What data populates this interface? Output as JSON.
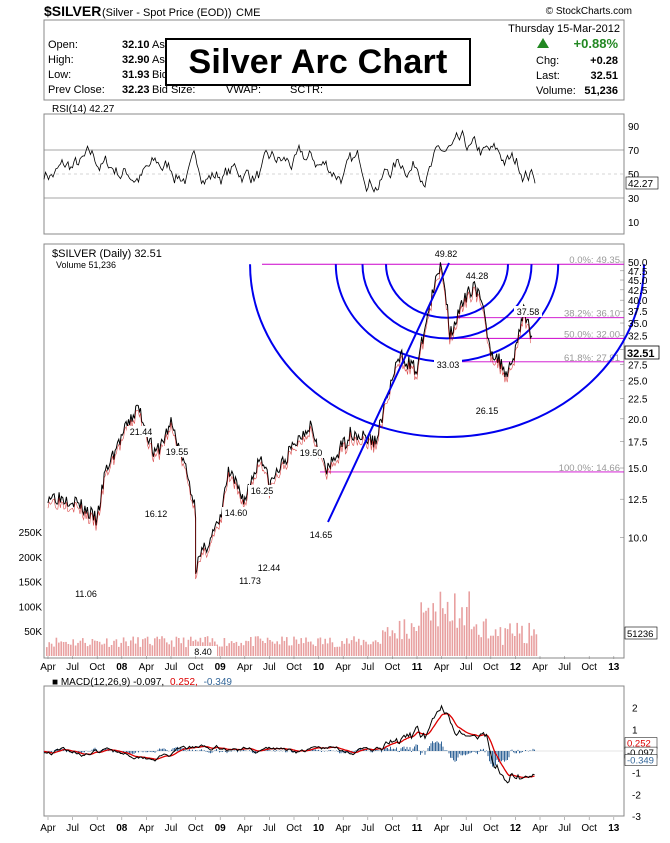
{
  "header": {
    "symbol": "$SILVER",
    "description": "(Silver - Spot Price (EOD))",
    "exchange": "CME",
    "watermark": "© StockCharts.com",
    "date": "Thursday  15-Mar-2012",
    "change_pct": "+0.88%",
    "stats_left": [
      {
        "label": "Open:",
        "value": "32.10"
      },
      {
        "label": "High:",
        "value": "32.90"
      },
      {
        "label": "Low:",
        "value": "31.93"
      },
      {
        "label": "Prev Close:",
        "value": "32.23"
      }
    ],
    "stats_mid": [
      "As",
      "As",
      "Bid",
      "Bid Size:",
      "VWAP:",
      "SCTR:"
    ],
    "stats_right": [
      {
        "label": "Chg:",
        "value": "+0.28"
      },
      {
        "label": "Last:",
        "value": "32.51"
      },
      {
        "label": "Volume:",
        "value": "51,236"
      }
    ],
    "overlay_title": "Silver Arc Chart"
  },
  "rsi": {
    "label": "RSI(14) 42.27",
    "value_badge": "42.27",
    "ticks": [
      "90",
      "70",
      "50",
      "30",
      "10"
    ]
  },
  "price": {
    "label": "$SILVER (Daily) 32.51",
    "volume_label": "Volume 51,236",
    "last_badge": "32.51",
    "volume_badge": "51236",
    "right_ticks": [
      "50.0",
      "47.5",
      "45.0",
      "42.5",
      "40.0",
      "37.5",
      "35.0",
      "32.5",
      "30.0",
      "27.5",
      "25.0",
      "22.5",
      "20.0",
      "17.5",
      "15.0",
      "12.5",
      "10.0"
    ],
    "volume_ticks": [
      "250K",
      "200K",
      "150K",
      "100K",
      "50K"
    ],
    "fib_labels": [
      "0.0%: 49.35",
      "38.2%: 36.10",
      "50.0%: 32.00",
      "61.8%: 27.91",
      "100.0%: 14.66"
    ],
    "annotations": [
      "49.82",
      "44.28",
      "37.58",
      "33.03",
      "26.15",
      "21.44",
      "19.55",
      "16.12",
      "19.50",
      "16.25",
      "14.60",
      "14.65",
      "11.06",
      "12.44",
      "11.73",
      "8.40"
    ]
  },
  "macd": {
    "label_main": "MACD(12,26,9) -0.097,",
    "label_signal": "0.252,",
    "label_hist": "-0.349",
    "ticks": [
      "2",
      "1",
      "0",
      "-1",
      "-2",
      "-3"
    ],
    "badges": [
      "0.252",
      "-0.097",
      "-0.349"
    ]
  },
  "x_axis_labels": [
    "Apr",
    "Jul",
    "Oct",
    "08",
    "Apr",
    "Jul",
    "Oct",
    "09",
    "Apr",
    "Jul",
    "Oct",
    "10",
    "Apr",
    "Jul",
    "Oct",
    "11",
    "Apr",
    "Jul",
    "Oct",
    "12",
    "Apr",
    "Jul",
    "Oct",
    "13"
  ],
  "colors": {
    "fib_line": "#cc00cc",
    "arc": "#0000ee",
    "price_line": "#000000",
    "price_low": "#cc0000",
    "volume_bar": "#e8a0a0",
    "rsi_zone": "#88aa66",
    "macd_line": "#000000",
    "signal_line": "#dd0000",
    "hist": "#336699",
    "up_arrow": "#228822"
  },
  "chart_data": [
    {
      "type": "line",
      "title": "RSI(14) 42.27",
      "ylim": [
        0,
        100
      ],
      "reference_lines": [
        70,
        50,
        30
      ],
      "last_value": 42.27
    },
    {
      "type": "line",
      "title": "$SILVER (Daily) 32.51",
      "x": [
        "2007-04",
        "2007-07",
        "2007-10",
        "2007-11",
        "2008-03",
        "2008-05",
        "2008-06",
        "2008-07",
        "2008-10",
        "2008-10",
        "2009-01",
        "2009-02",
        "2009-04",
        "2009-06",
        "2009-07",
        "2009-12",
        "2010-02",
        "2010-05",
        "2010-08",
        "2010-11",
        "2011-01",
        "2011-04",
        "2011-05",
        "2011-08",
        "2011-09",
        "2011-10",
        "2011-12",
        "2012-01",
        "2012-02",
        "2012-03"
      ],
      "series": [
        {
          "values": [
            12.8,
            12.5,
            11.06,
            14.6,
            21.44,
            16.12,
            17.5,
            19.55,
            11.73,
            8.4,
            11.0,
            14.6,
            12.44,
            16.25,
            13.5,
            19.5,
            14.65,
            18.5,
            17.5,
            29.0,
            26.5,
            49.82,
            33.03,
            44.28,
            38.0,
            30.0,
            26.15,
            30.0,
            37.58,
            32.51
          ]
        }
      ],
      "fibonacci": [
        {
          "level": "0.0%",
          "value": 49.35
        },
        {
          "level": "38.2%",
          "value": 36.1
        },
        {
          "level": "50.0%",
          "value": 32.0
        },
        {
          "level": "61.8%",
          "value": 27.91
        },
        {
          "level": "100.0%",
          "value": 14.66
        }
      ],
      "ylim": [
        5,
        50
      ],
      "volume_ylim": [
        0,
        250000
      ],
      "last_volume": 51236
    },
    {
      "type": "line",
      "title": "MACD(12,26,9)",
      "series": [
        {
          "name": "MACD",
          "last": -0.097
        },
        {
          "name": "Signal",
          "last": 0.252
        },
        {
          "name": "Histogram",
          "last": -0.349
        }
      ],
      "ylim": [
        -3,
        3
      ]
    }
  ]
}
